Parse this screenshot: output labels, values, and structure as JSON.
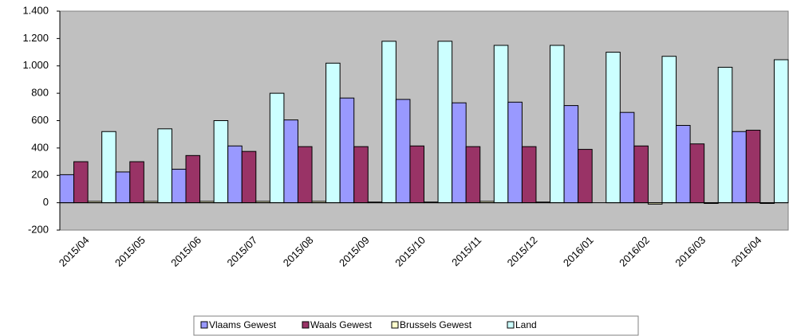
{
  "chart_data": {
    "type": "bar",
    "categories": [
      "2015/04",
      "2015/05",
      "2015/06",
      "2015/07",
      "2015/08",
      "2015/09",
      "2015/10",
      "2015/11",
      "2015/12",
      "2016/01",
      "2016/02",
      "2016/03",
      "2016/04"
    ],
    "series": [
      {
        "name": "Vlaams Gewest",
        "color": "#9999ff",
        "values": [
          205,
          225,
          245,
          415,
          605,
          765,
          755,
          730,
          735,
          710,
          660,
          565,
          520
        ]
      },
      {
        "name": "Waals Gewest",
        "color": "#993366",
        "values": [
          300,
          300,
          345,
          375,
          410,
          410,
          415,
          410,
          410,
          390,
          415,
          430,
          530
        ]
      },
      {
        "name": "Brussels Gewest",
        "color": "#ffffcc",
        "values": [
          10,
          10,
          10,
          10,
          10,
          5,
          5,
          10,
          5,
          0,
          -10,
          -5,
          -5
        ]
      },
      {
        "name": "Land",
        "color": "#ccffff",
        "values": [
          520,
          540,
          600,
          800,
          1020,
          1180,
          1180,
          1150,
          1150,
          1100,
          1070,
          990,
          1045
        ]
      }
    ],
    "ylim": [
      -200,
      1400
    ],
    "yticks": [
      -200,
      0,
      200,
      400,
      600,
      800,
      {
        "value": 1000,
        "label": "1.000"
      },
      {
        "value": 1200,
        "label": "1.200"
      },
      {
        "value": 1400,
        "label": "1.400"
      }
    ],
    "grid": false,
    "plot_background": "#c0c0c0",
    "legend": "bottom"
  }
}
